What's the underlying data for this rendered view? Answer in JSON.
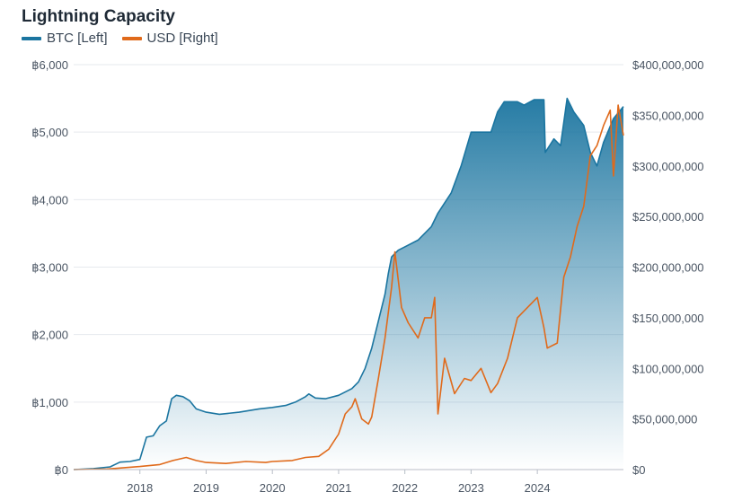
{
  "chart_data": {
    "type": "line",
    "title": "Lightning Capacity",
    "legend_position": "top-left",
    "grid": true,
    "x_range": [
      2017.0,
      2025.3
    ],
    "x_ticks": [
      {
        "value": 2018,
        "label": "2018"
      },
      {
        "value": 2019,
        "label": "2019"
      },
      {
        "value": 2020,
        "label": "2020"
      },
      {
        "value": 2021,
        "label": "2021"
      },
      {
        "value": 2022,
        "label": "2022"
      },
      {
        "value": 2023,
        "label": "2023"
      },
      {
        "value": 2024,
        "label": "2024"
      }
    ],
    "y_left": {
      "range": [
        0,
        6000
      ],
      "ticks": [
        {
          "value": 0,
          "label": "฿0"
        },
        {
          "value": 1000,
          "label": "฿1,000"
        },
        {
          "value": 2000,
          "label": "฿2,000"
        },
        {
          "value": 3000,
          "label": "฿3,000"
        },
        {
          "value": 4000,
          "label": "฿4,000"
        },
        {
          "value": 5000,
          "label": "฿5,000"
        },
        {
          "value": 6000,
          "label": "฿6,000"
        }
      ]
    },
    "y_right": {
      "range": [
        0,
        400000000
      ],
      "ticks": [
        {
          "value": 0,
          "label": "$0"
        },
        {
          "value": 50000000,
          "label": "$50,000,000"
        },
        {
          "value": 100000000,
          "label": "$100,000,000"
        },
        {
          "value": 150000000,
          "label": "$150,000,000"
        },
        {
          "value": 200000000,
          "label": "$200,000,000"
        },
        {
          "value": 250000000,
          "label": "$250,000,000"
        },
        {
          "value": 300000000,
          "label": "$300,000,000"
        },
        {
          "value": 350000000,
          "label": "$350,000,000"
        },
        {
          "value": 400000000,
          "label": "$400,000,000"
        }
      ]
    },
    "series": [
      {
        "name": "BTC [Left]",
        "axis": "left",
        "color": "#1b75a0",
        "fill": true,
        "points": [
          [
            2017.0,
            0
          ],
          [
            2017.3,
            15
          ],
          [
            2017.55,
            40
          ],
          [
            2017.7,
            110
          ],
          [
            2017.85,
            120
          ],
          [
            2018.0,
            150
          ],
          [
            2018.1,
            480
          ],
          [
            2018.2,
            500
          ],
          [
            2018.3,
            650
          ],
          [
            2018.4,
            720
          ],
          [
            2018.48,
            1050
          ],
          [
            2018.55,
            1100
          ],
          [
            2018.65,
            1080
          ],
          [
            2018.75,
            1020
          ],
          [
            2018.85,
            900
          ],
          [
            2019.0,
            850
          ],
          [
            2019.2,
            820
          ],
          [
            2019.5,
            850
          ],
          [
            2019.8,
            900
          ],
          [
            2020.0,
            920
          ],
          [
            2020.2,
            950
          ],
          [
            2020.35,
            1000
          ],
          [
            2020.5,
            1080
          ],
          [
            2020.55,
            1120
          ],
          [
            2020.65,
            1060
          ],
          [
            2020.8,
            1050
          ],
          [
            2021.0,
            1100
          ],
          [
            2021.2,
            1200
          ],
          [
            2021.3,
            1300
          ],
          [
            2021.4,
            1500
          ],
          [
            2021.5,
            1800
          ],
          [
            2021.6,
            2200
          ],
          [
            2021.7,
            2600
          ],
          [
            2021.75,
            2900
          ],
          [
            2021.8,
            3150
          ],
          [
            2021.9,
            3250
          ],
          [
            2022.0,
            3300
          ],
          [
            2022.2,
            3400
          ],
          [
            2022.4,
            3600
          ],
          [
            2022.5,
            3800
          ],
          [
            2022.7,
            4100
          ],
          [
            2022.85,
            4500
          ],
          [
            2023.0,
            5000
          ],
          [
            2023.3,
            5000
          ],
          [
            2023.4,
            5300
          ],
          [
            2023.5,
            5450
          ],
          [
            2023.7,
            5450
          ],
          [
            2023.8,
            5400
          ],
          [
            2023.95,
            5480
          ],
          [
            2024.1,
            5480
          ],
          [
            2024.12,
            4700
          ],
          [
            2024.25,
            4900
          ],
          [
            2024.35,
            4800
          ],
          [
            2024.45,
            5500
          ],
          [
            2024.55,
            5300
          ],
          [
            2024.7,
            5100
          ],
          [
            2024.8,
            4700
          ],
          [
            2024.9,
            4500
          ],
          [
            2025.0,
            4850
          ],
          [
            2025.15,
            5200
          ],
          [
            2025.3,
            5380
          ]
        ]
      },
      {
        "name": "USD [Right]",
        "axis": "right",
        "color": "#e06a1b",
        "fill": false,
        "points": [
          [
            2017.0,
            0
          ],
          [
            2017.5,
            500000
          ],
          [
            2018.0,
            3000000
          ],
          [
            2018.3,
            5000000
          ],
          [
            2018.5,
            9000000
          ],
          [
            2018.7,
            12000000
          ],
          [
            2018.85,
            9000000
          ],
          [
            2019.0,
            7000000
          ],
          [
            2019.3,
            6000000
          ],
          [
            2019.6,
            8000000
          ],
          [
            2019.9,
            7000000
          ],
          [
            2020.0,
            8000000
          ],
          [
            2020.3,
            9000000
          ],
          [
            2020.5,
            12000000
          ],
          [
            2020.7,
            13000000
          ],
          [
            2020.85,
            20000000
          ],
          [
            2021.0,
            35000000
          ],
          [
            2021.1,
            55000000
          ],
          [
            2021.2,
            62000000
          ],
          [
            2021.25,
            70000000
          ],
          [
            2021.35,
            50000000
          ],
          [
            2021.45,
            45000000
          ],
          [
            2021.5,
            52000000
          ],
          [
            2021.6,
            90000000
          ],
          [
            2021.7,
            130000000
          ],
          [
            2021.8,
            180000000
          ],
          [
            2021.85,
            215000000
          ],
          [
            2021.95,
            160000000
          ],
          [
            2022.05,
            145000000
          ],
          [
            2022.2,
            130000000
          ],
          [
            2022.3,
            150000000
          ],
          [
            2022.4,
            150000000
          ],
          [
            2022.45,
            170000000
          ],
          [
            2022.5,
            55000000
          ],
          [
            2022.6,
            110000000
          ],
          [
            2022.75,
            75000000
          ],
          [
            2022.9,
            90000000
          ],
          [
            2023.0,
            88000000
          ],
          [
            2023.15,
            100000000
          ],
          [
            2023.3,
            76000000
          ],
          [
            2023.4,
            85000000
          ],
          [
            2023.55,
            110000000
          ],
          [
            2023.7,
            150000000
          ],
          [
            2023.85,
            160000000
          ],
          [
            2024.0,
            170000000
          ],
          [
            2024.1,
            140000000
          ],
          [
            2024.15,
            120000000
          ],
          [
            2024.3,
            125000000
          ],
          [
            2024.4,
            190000000
          ],
          [
            2024.5,
            210000000
          ],
          [
            2024.6,
            240000000
          ],
          [
            2024.7,
            260000000
          ],
          [
            2024.8,
            310000000
          ],
          [
            2024.9,
            320000000
          ],
          [
            2025.0,
            340000000
          ],
          [
            2025.1,
            355000000
          ],
          [
            2025.15,
            290000000
          ],
          [
            2025.22,
            360000000
          ],
          [
            2025.3,
            330000000
          ]
        ]
      }
    ]
  }
}
